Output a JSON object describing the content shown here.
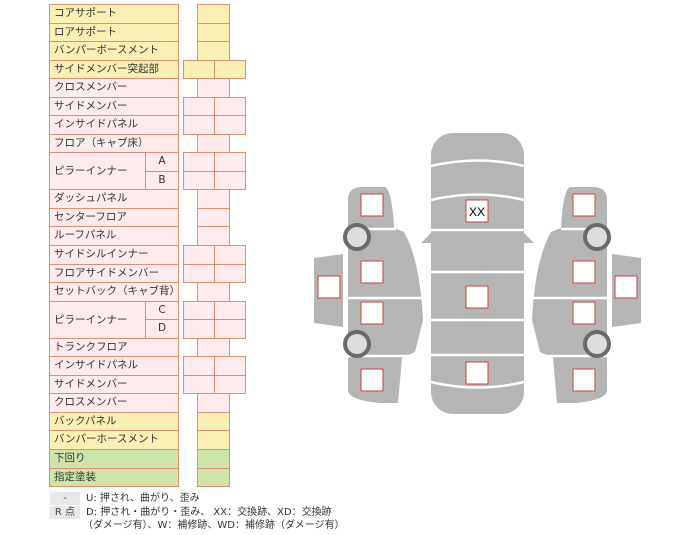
{
  "rows": [
    {
      "label": "コアサポート",
      "cells": 1,
      "color": "yellow"
    },
    {
      "label": "ロアサポート",
      "cells": 1,
      "color": "yellow"
    },
    {
      "label": "バンパーボースメント",
      "cells": 1,
      "color": "yellow"
    },
    {
      "label": "サイドメンバー突起部",
      "cells": 2,
      "color": "yellow"
    },
    {
      "label": "クロスメンバー",
      "cells": 1,
      "color": "pink"
    },
    {
      "label": "サイドメンバー",
      "cells": 2,
      "color": "pink"
    },
    {
      "label": "インサイドパネル",
      "cells": 2,
      "color": "pink"
    },
    {
      "label": "フロア（キャブ床）",
      "cells": 1,
      "color": "pink"
    },
    {
      "label": "ピラーインナー",
      "sub": "A",
      "cells": 2,
      "color": "pink"
    },
    {
      "label": "",
      "sub": "B",
      "cells": 2,
      "color": "pink"
    },
    {
      "label": "ダッシュパネル",
      "cells": 1,
      "color": "pink"
    },
    {
      "label": "センターフロア",
      "cells": 1,
      "color": "pink"
    },
    {
      "label": "ルーフパネル",
      "cells": 1,
      "color": "pink"
    },
    {
      "label": "サイドシルインナー",
      "cells": 2,
      "color": "pink"
    },
    {
      "label": "フロアサイドメンバー",
      "cells": 2,
      "color": "pink"
    },
    {
      "label": "セットバック（キャブ背）",
      "cells": 1,
      "color": "pink"
    },
    {
      "label": "ピラーインナー",
      "sub": "C",
      "cells": 2,
      "color": "pink"
    },
    {
      "label": "",
      "sub": "D",
      "cells": 2,
      "color": "pink"
    },
    {
      "label": "トランクフロア",
      "cells": 1,
      "color": "pink"
    },
    {
      "label": "インサイドパネル",
      "cells": 2,
      "color": "pink"
    },
    {
      "label": "サイドメンバー",
      "cells": 2,
      "color": "pink"
    },
    {
      "label": "クロスメンバー",
      "cells": 1,
      "color": "pink"
    },
    {
      "label": "バックパネル",
      "cells": 1,
      "color": "yellow"
    },
    {
      "label": "バンパーホースメント",
      "cells": 1,
      "color": "yellow"
    },
    {
      "label": "下回り",
      "cells": 1,
      "color": "green"
    },
    {
      "label": "指定塗装",
      "cells": 1,
      "color": "green"
    }
  ],
  "colors": {
    "yellow": "#fbf0b4",
    "pink": "#fdebee",
    "green": "#cfe4a8",
    "border": "#e0906e",
    "car": "#b5b5b5",
    "mark_border": "#d04040"
  },
  "diagram": {
    "roof_mark": "XX"
  },
  "legend": {
    "tag1": "-",
    "line1": "U: 押され、曲がり、歪み",
    "tag2": "R 点",
    "line2": "D: 押され・曲がり・歪み、 XX：交換跡、XD：交換跡",
    "line3": "（ダメージ有）、W：補修跡、WD：補修跡（ダメージ有）"
  }
}
